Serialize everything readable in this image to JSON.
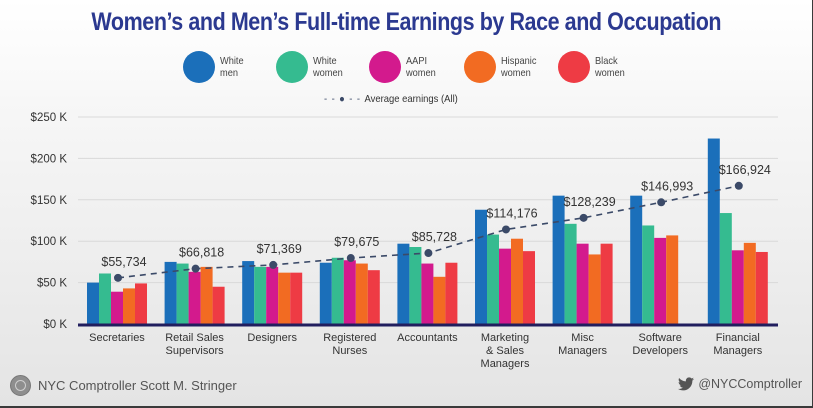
{
  "chart_data": {
    "type": "bar",
    "title": "Women’s and Men’s Full-time Earnings by Race and Occupation",
    "xlabel": "",
    "ylabel": "",
    "ylim": [
      0,
      250000
    ],
    "yticks": [
      0,
      50000,
      100000,
      150000,
      200000,
      250000
    ],
    "ytick_labels": [
      "$0 K",
      "$50 K",
      "$100 K",
      "$150 K",
      "$200 K",
      "$250 K"
    ],
    "grid": true,
    "legend_position": "top-center",
    "categories": [
      "Secretaries",
      "Retail Sales Supervisors",
      "Designers",
      "Registered Nurses",
      "Accountants",
      "Marketing & Sales Managers",
      "Misc Managers",
      "Software Developers",
      "Financial Managers"
    ],
    "category_label_lines": [
      [
        "Secretaries"
      ],
      [
        "Retail Sales",
        "Supervisors"
      ],
      [
        "Designers"
      ],
      [
        "Registered",
        "Nurses"
      ],
      [
        "Accountants"
      ],
      [
        "Marketing",
        "& Sales",
        "Managers"
      ],
      [
        "Misc",
        "Managers"
      ],
      [
        "Software",
        "Developers"
      ],
      [
        "Financial",
        "Managers"
      ]
    ],
    "series": [
      {
        "name": "White men",
        "label_lines": [
          "White",
          "men"
        ],
        "color": "#1b6fba",
        "values": [
          50000,
          75000,
          76000,
          74000,
          97000,
          138000,
          155000,
          155000,
          224000
        ]
      },
      {
        "name": "White women",
        "label_lines": [
          "White",
          "women"
        ],
        "color": "#35bb90",
        "values": [
          61000,
          73000,
          69000,
          80000,
          93000,
          108000,
          121000,
          119000,
          134000
        ]
      },
      {
        "name": "AAPI women",
        "label_lines": [
          "AAPI",
          "women"
        ],
        "color": "#d31a8d",
        "values": [
          39000,
          63000,
          69000,
          77000,
          73000,
          91000,
          97000,
          104000,
          89000
        ]
      },
      {
        "name": "Hispanic women",
        "label_lines": [
          "Hispanic",
          "women"
        ],
        "color": "#f26b22",
        "values": [
          43000,
          69000,
          62000,
          73000,
          57000,
          103000,
          84000,
          107000,
          98000
        ]
      },
      {
        "name": "Black women",
        "label_lines": [
          "Black",
          "women"
        ],
        "color": "#ee3b44",
        "values": [
          49000,
          45000,
          62000,
          65000,
          74000,
          88000,
          97000,
          null,
          87000
        ]
      }
    ],
    "average_line": {
      "name": "Average earnings (All)",
      "color": "#3b4a68",
      "values": [
        55734,
        66818,
        71369,
        79675,
        85728,
        114176,
        128239,
        146993,
        166924
      ],
      "labels": [
        "$55,734",
        "$66,818",
        "$71,369",
        "$79,675",
        "$85,728",
        "$114,176",
        "$128,239",
        "$146,993",
        "$166,924"
      ]
    }
  },
  "legend": {
    "average_symbol": "- - ● - -",
    "average_label": "Average earnings (All)"
  },
  "footer": {
    "organization": "NYC Comptroller Scott M. Stringer",
    "twitter_handle": "@NYCComptroller"
  }
}
